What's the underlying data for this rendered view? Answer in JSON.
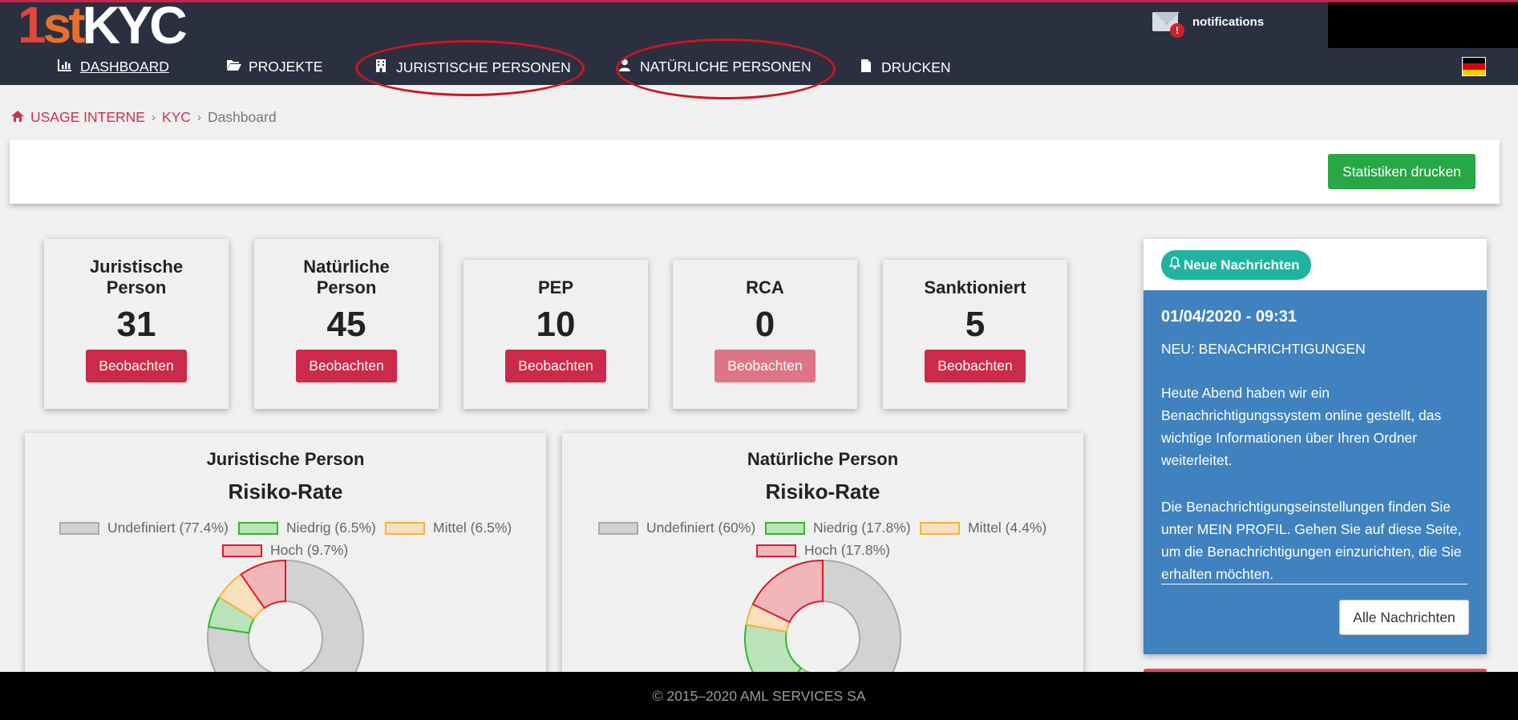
{
  "header": {
    "logo": {
      "part1": "1",
      "part2": "st",
      "part3": "KYC"
    },
    "notifications_label": "notifications",
    "notifications_icon": "envelope-alert-icon"
  },
  "nav": {
    "items": [
      {
        "label": "DASHBOARD",
        "icon": "bar-chart-icon",
        "active": true
      },
      {
        "label": "PROJEKTE",
        "icon": "folder-open-icon"
      },
      {
        "label": "JURISTISCHE PERSONEN",
        "icon": "building-icon"
      },
      {
        "label": "NATÜRLICHE PERSONEN",
        "icon": "user-icon"
      },
      {
        "label": "DRUCKEN",
        "icon": "file-icon"
      }
    ],
    "language_flag": "german-flag",
    "flag_colors": [
      "#000000",
      "#dd0000",
      "#ffce00"
    ]
  },
  "breadcrumb": {
    "home": "USAGE INTERNE",
    "section": "KYC",
    "current": "Dashboard",
    "separator": "›"
  },
  "toolbar": {
    "print_stats_label": "Statistiken drucken"
  },
  "stats": [
    {
      "title": "Juristische Person",
      "value": "31",
      "button": "Beobachten",
      "enabled": true
    },
    {
      "title": "Natürliche Person",
      "value": "45",
      "button": "Beobachten",
      "enabled": true
    },
    {
      "title": "PEP",
      "value": "10",
      "button": "Beobachten",
      "enabled": true
    },
    {
      "title": "RCA",
      "value": "0",
      "button": "Beobachten",
      "enabled": false
    },
    {
      "title": "Sanktioniert",
      "value": "5",
      "button": "Beobachten",
      "enabled": true
    }
  ],
  "chart_data": [
    {
      "type": "pie",
      "subtitle": "Juristische Person",
      "title": "Risiko-Rate",
      "categories": [
        "Undefiniert",
        "Niedrig",
        "Mittel",
        "Hoch"
      ],
      "values": [
        77.4,
        6.5,
        6.5,
        9.7
      ],
      "legend_labels": [
        "Undefiniert (77.4%)",
        "Niedrig (6.5%)",
        "Mittel (6.5%)",
        "Hoch (9.7%)"
      ],
      "colors": [
        "#d2d2d2",
        "#b9e4b9",
        "#f8dfbf",
        "#f0b6b9"
      ],
      "border_colors": [
        "#aaaaaa",
        "#2eb82e",
        "#f2b43c",
        "#dd1a2a"
      ],
      "legend_position": "top"
    },
    {
      "type": "pie",
      "subtitle": "Natürliche Person",
      "title": "Risiko-Rate",
      "categories": [
        "Undefiniert",
        "Niedrig",
        "Mittel",
        "Hoch"
      ],
      "values": [
        60,
        17.8,
        4.4,
        17.8
      ],
      "legend_labels": [
        "Undefiniert (60%)",
        "Niedrig (17.8%)",
        "Mittel (4.4%)",
        "Hoch (17.8%)"
      ],
      "colors": [
        "#d2d2d2",
        "#b9e4b9",
        "#f8dfbf",
        "#f0b6b9"
      ],
      "border_colors": [
        "#aaaaaa",
        "#2eb82e",
        "#f2b43c",
        "#dd1a2a"
      ],
      "legend_position": "top"
    }
  ],
  "messages": {
    "badge": "Neue Nachrichten",
    "badge_icon": "bell-icon",
    "date": "01/04/2020 - 09:31",
    "heading": "NEU: BENACHRICHTIGUNGEN",
    "paragraph1": "Heute Abend haben wir ein Benachrichtigungssystem online gestellt, das wichtige Informationen über Ihren Ordner weiterleitet.",
    "paragraph2": "Die Benachrichtigungseinstellungen finden Sie unter MEIN PROFIL. Gehen Sie auf diese Seite, um die Benachrichtigungen einzurichten, die Sie erhalten möchten.",
    "all_button": "Alle Nachrichten"
  },
  "footer": {
    "copyright": "© 2015–2020 AML SERVICES SA"
  }
}
